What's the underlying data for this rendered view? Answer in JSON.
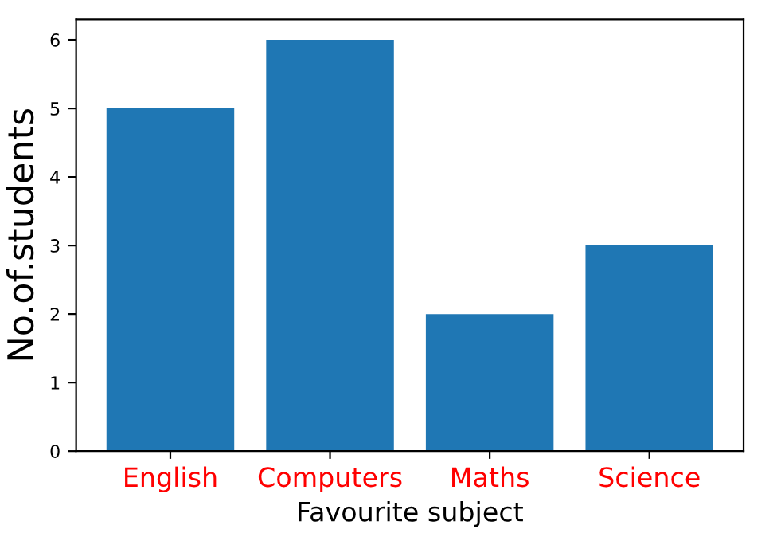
{
  "chart_data": {
    "type": "bar",
    "xlabel": "Favourite subject",
    "ylabel": "No.of.students",
    "categories": [
      "English",
      "Computers",
      "Maths",
      "Science"
    ],
    "values": [
      5,
      6,
      2,
      3
    ],
    "color": "#1f77b4",
    "ylim": [
      0,
      6.3
    ],
    "yticks": [
      0,
      1,
      2,
      3,
      4,
      5,
      6
    ],
    "grid": false,
    "legend": false
  }
}
